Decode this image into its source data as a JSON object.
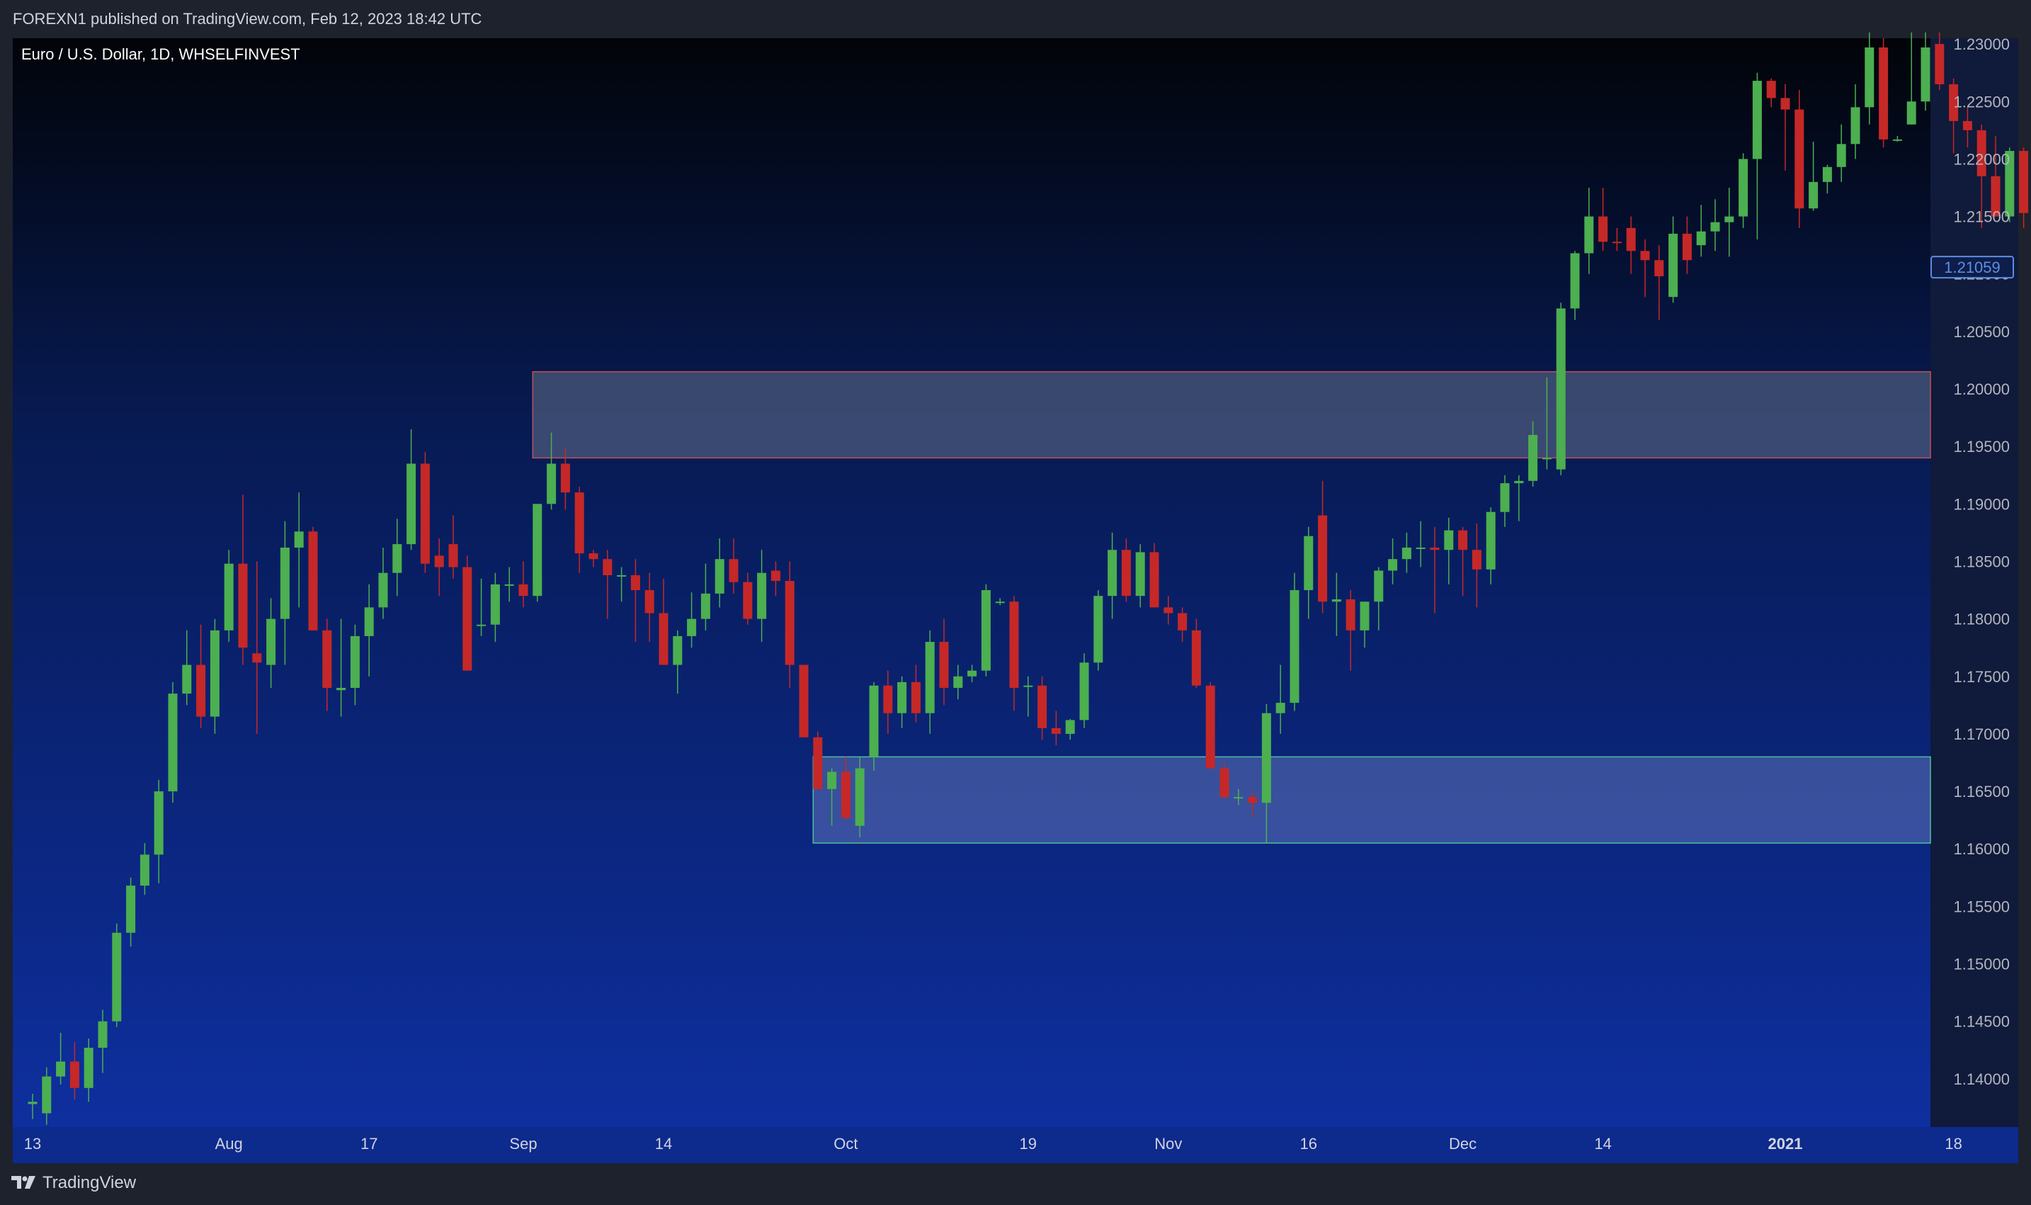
{
  "header": {
    "published": "FOREXN1 published on TradingView.com, Feb 12, 2023 18:42 UTC"
  },
  "footer": {
    "brand": "TradingView"
  },
  "colors": {
    "up": "#4caf50",
    "down": "#c62828",
    "bg_top": "#020409",
    "bg_bottom": "#0e2f9f",
    "price_label": "#5b8fe0"
  },
  "chart_data": {
    "type": "candlestick",
    "title": "Euro / U.S. Dollar, 1D, WHSELFINVEST",
    "ylim": [
      1.1358,
      1.2305
    ],
    "y_ticks": [
      "1.23000",
      "1.22500",
      "1.22000",
      "1.21500",
      "1.21000",
      "1.20500",
      "1.20000",
      "1.19500",
      "1.19000",
      "1.18500",
      "1.18000",
      "1.17500",
      "1.17000",
      "1.16500",
      "1.16000",
      "1.15500",
      "1.15000",
      "1.14500",
      "1.14000"
    ],
    "x_ticks": [
      {
        "label": "13",
        "index": 0
      },
      {
        "label": "Aug",
        "index": 14
      },
      {
        "label": "17",
        "index": 24
      },
      {
        "label": "Sep",
        "index": 35
      },
      {
        "label": "14",
        "index": 45
      },
      {
        "label": "Oct",
        "index": 58
      },
      {
        "label": "19",
        "index": 71
      },
      {
        "label": "Nov",
        "index": 81
      },
      {
        "label": "16",
        "index": 91
      },
      {
        "label": "Dec",
        "index": 102
      },
      {
        "label": "14",
        "index": 112
      },
      {
        "label": "2021",
        "index": 125
      },
      {
        "label": "18",
        "index": 137
      }
    ],
    "last_price": "1.21059",
    "zones": [
      {
        "name": "supply",
        "from_index": 36,
        "top": 1.2015,
        "bottom": 1.194
      },
      {
        "name": "demand",
        "from_index": 56,
        "top": 1.168,
        "bottom": 1.1605
      }
    ],
    "candles": [
      [
        1.1378,
        1.1387,
        1.1365,
        1.138
      ],
      [
        1.137,
        1.141,
        1.136,
        1.1402
      ],
      [
        1.1402,
        1.144,
        1.1395,
        1.1415
      ],
      [
        1.1415,
        1.1432,
        1.1382,
        1.1392
      ],
      [
        1.1392,
        1.1435,
        1.138,
        1.1427
      ],
      [
        1.1427,
        1.146,
        1.1405,
        1.145
      ],
      [
        1.145,
        1.1535,
        1.1445,
        1.1527
      ],
      [
        1.1527,
        1.1575,
        1.1515,
        1.1568
      ],
      [
        1.1568,
        1.1605,
        1.156,
        1.1595
      ],
      [
        1.1595,
        1.166,
        1.157,
        1.165
      ],
      [
        1.165,
        1.1745,
        1.164,
        1.1735
      ],
      [
        1.1735,
        1.179,
        1.1725,
        1.176
      ],
      [
        1.176,
        1.1795,
        1.1705,
        1.1715
      ],
      [
        1.1715,
        1.18,
        1.17,
        1.179
      ],
      [
        1.179,
        1.186,
        1.178,
        1.1848
      ],
      [
        1.1848,
        1.1908,
        1.176,
        1.1775
      ],
      [
        1.177,
        1.185,
        1.17,
        1.1762
      ],
      [
        1.176,
        1.1818,
        1.174,
        1.18
      ],
      [
        1.18,
        1.1885,
        1.176,
        1.1862
      ],
      [
        1.1862,
        1.191,
        1.181,
        1.1876
      ],
      [
        1.1876,
        1.188,
        1.179,
        1.179
      ],
      [
        1.179,
        1.18,
        1.172,
        1.174
      ],
      [
        1.1738,
        1.18,
        1.1715,
        1.174
      ],
      [
        1.174,
        1.1795,
        1.1725,
        1.1785
      ],
      [
        1.1785,
        1.183,
        1.175,
        1.181
      ],
      [
        1.181,
        1.1862,
        1.18,
        1.184
      ],
      [
        1.184,
        1.1887,
        1.182,
        1.1865
      ],
      [
        1.1865,
        1.1965,
        1.186,
        1.1935
      ],
      [
        1.1935,
        1.1945,
        1.184,
        1.1848
      ],
      [
        1.1855,
        1.187,
        1.182,
        1.1845
      ],
      [
        1.1865,
        1.189,
        1.1835,
        1.1845
      ],
      [
        1.1845,
        1.1855,
        1.1755,
        1.1755
      ],
      [
        1.1795,
        1.1835,
        1.1785,
        1.1795
      ],
      [
        1.1795,
        1.184,
        1.178,
        1.183
      ],
      [
        1.183,
        1.1845,
        1.1815,
        1.183
      ],
      [
        1.183,
        1.185,
        1.181,
        1.182
      ],
      [
        1.182,
        1.19,
        1.1815,
        1.19
      ],
      [
        1.19,
        1.1962,
        1.1895,
        1.1935
      ],
      [
        1.1935,
        1.1948,
        1.1895,
        1.191
      ],
      [
        1.191,
        1.1915,
        1.184,
        1.1857
      ],
      [
        1.1857,
        1.186,
        1.1845,
        1.1852
      ],
      [
        1.1852,
        1.186,
        1.18,
        1.1838
      ],
      [
        1.1838,
        1.1845,
        1.1815,
        1.1838
      ],
      [
        1.1838,
        1.1852,
        1.178,
        1.1825
      ],
      [
        1.1825,
        1.184,
        1.178,
        1.1805
      ],
      [
        1.1805,
        1.1835,
        1.176,
        1.176
      ],
      [
        1.176,
        1.179,
        1.1735,
        1.1785
      ],
      [
        1.1785,
        1.1823,
        1.1775,
        1.18
      ],
      [
        1.18,
        1.1848,
        1.179,
        1.1822
      ],
      [
        1.1822,
        1.187,
        1.181,
        1.1852
      ],
      [
        1.1852,
        1.187,
        1.1822,
        1.1832
      ],
      [
        1.1832,
        1.184,
        1.1795,
        1.18
      ],
      [
        1.18,
        1.186,
        1.178,
        1.184
      ],
      [
        1.1842,
        1.185,
        1.182,
        1.1833
      ],
      [
        1.1833,
        1.185,
        1.174,
        1.176
      ],
      [
        1.176,
        1.176,
        1.17,
        1.1697
      ],
      [
        1.1697,
        1.1702,
        1.1655,
        1.1652
      ],
      [
        1.1652,
        1.167,
        1.162,
        1.1667
      ],
      [
        1.1667,
        1.168,
        1.1625,
        1.1627
      ],
      [
        1.162,
        1.168,
        1.161,
        1.167
      ],
      [
        1.168,
        1.1745,
        1.1668,
        1.1742
      ],
      [
        1.1742,
        1.1755,
        1.17,
        1.1718
      ],
      [
        1.1718,
        1.175,
        1.1705,
        1.1745
      ],
      [
        1.1745,
        1.176,
        1.171,
        1.1718
      ],
      [
        1.1718,
        1.179,
        1.17,
        1.178
      ],
      [
        1.178,
        1.18,
        1.1725,
        1.174
      ],
      [
        1.174,
        1.176,
        1.173,
        1.175
      ],
      [
        1.175,
        1.176,
        1.1745,
        1.1755
      ],
      [
        1.1755,
        1.183,
        1.175,
        1.1825
      ],
      [
        1.1815,
        1.1818,
        1.1812,
        1.1815
      ],
      [
        1.1815,
        1.182,
        1.172,
        1.174
      ],
      [
        1.1742,
        1.175,
        1.1715,
        1.1742
      ],
      [
        1.1742,
        1.175,
        1.1695,
        1.1705
      ],
      [
        1.1705,
        1.172,
        1.169,
        1.17
      ],
      [
        1.17,
        1.1713,
        1.1695,
        1.1712
      ],
      [
        1.1712,
        1.177,
        1.1705,
        1.1762
      ],
      [
        1.1762,
        1.1825,
        1.1755,
        1.182
      ],
      [
        1.182,
        1.1875,
        1.18,
        1.186
      ],
      [
        1.186,
        1.187,
        1.1815,
        1.182
      ],
      [
        1.182,
        1.1865,
        1.181,
        1.1858
      ],
      [
        1.1858,
        1.1866,
        1.181,
        1.181
      ],
      [
        1.181,
        1.182,
        1.1795,
        1.1805
      ],
      [
        1.1805,
        1.181,
        1.178,
        1.179
      ],
      [
        1.179,
        1.18,
        1.174,
        1.1742
      ],
      [
        1.1742,
        1.1745,
        1.167,
        1.167
      ],
      [
        1.167,
        1.1675,
        1.1643,
        1.1645
      ],
      [
        1.1645,
        1.1652,
        1.1638,
        1.1645
      ],
      [
        1.1645,
        1.165,
        1.1628,
        1.164
      ],
      [
        1.164,
        1.1726,
        1.1605,
        1.1718
      ],
      [
        1.1718,
        1.176,
        1.17,
        1.1727
      ],
      [
        1.1727,
        1.184,
        1.172,
        1.1825
      ],
      [
        1.1825,
        1.188,
        1.18,
        1.1872
      ],
      [
        1.189,
        1.192,
        1.1805,
        1.1815
      ],
      [
        1.1815,
        1.184,
        1.1785,
        1.1817
      ],
      [
        1.1817,
        1.1825,
        1.1755,
        1.179
      ],
      [
        1.179,
        1.181,
        1.1775,
        1.1815
      ],
      [
        1.1815,
        1.1845,
        1.179,
        1.1842
      ],
      [
        1.1842,
        1.187,
        1.183,
        1.1852
      ],
      [
        1.1852,
        1.1875,
        1.184,
        1.1862
      ],
      [
        1.1862,
        1.1885,
        1.1845,
        1.1862
      ],
      [
        1.1862,
        1.188,
        1.1805,
        1.186
      ],
      [
        1.186,
        1.1888,
        1.183,
        1.1877
      ],
      [
        1.1877,
        1.188,
        1.182,
        1.186
      ],
      [
        1.186,
        1.1883,
        1.181,
        1.1843
      ],
      [
        1.1843,
        1.1897,
        1.183,
        1.1893
      ],
      [
        1.1893,
        1.1925,
        1.188,
        1.1918
      ],
      [
        1.1918,
        1.1925,
        1.1885,
        1.192
      ],
      [
        1.192,
        1.1972,
        1.1915,
        1.196
      ],
      [
        1.194,
        1.201,
        1.193,
        1.194
      ],
      [
        1.193,
        1.2075,
        1.1925,
        1.207
      ],
      [
        1.207,
        1.212,
        1.206,
        1.2118
      ],
      [
        1.2118,
        1.2175,
        1.21,
        1.215
      ],
      [
        1.215,
        1.2175,
        1.212,
        1.2128
      ],
      [
        1.2128,
        1.214,
        1.212,
        1.2127
      ],
      [
        1.214,
        1.215,
        1.21,
        1.212
      ],
      [
        1.212,
        1.213,
        1.208,
        1.2112
      ],
      [
        1.2112,
        1.2125,
        1.206,
        1.2098
      ],
      [
        1.208,
        1.215,
        1.2075,
        1.2135
      ],
      [
        1.2135,
        1.215,
        1.21,
        1.2112
      ],
      [
        1.2125,
        1.216,
        1.2115,
        1.2137
      ],
      [
        1.2137,
        1.2165,
        1.212,
        1.2145
      ],
      [
        1.2145,
        1.2175,
        1.2115,
        1.215
      ],
      [
        1.215,
        1.2205,
        1.214,
        1.22
      ],
      [
        1.22,
        1.2275,
        1.213,
        1.2268
      ],
      [
        1.2268,
        1.227,
        1.2245,
        1.2253
      ],
      [
        1.2253,
        1.2265,
        1.219,
        1.2243
      ],
      [
        1.2243,
        1.226,
        1.214,
        1.2157
      ],
      [
        1.2157,
        1.2215,
        1.2155,
        1.218
      ],
      [
        1.218,
        1.2195,
        1.217,
        1.2193
      ],
      [
        1.2193,
        1.223,
        1.218,
        1.2213
      ],
      [
        1.2213,
        1.2265,
        1.22,
        1.2245
      ],
      [
        1.2245,
        1.231,
        1.223,
        1.2297
      ],
      [
        1.2297,
        1.2305,
        1.221,
        1.2217
      ],
      [
        1.2217,
        1.222,
        1.2215,
        1.2217
      ],
      [
        1.223,
        1.231,
        1.223,
        1.225
      ],
      [
        1.225,
        1.231,
        1.2242,
        1.2297
      ],
      [
        1.23,
        1.231,
        1.226,
        1.2265
      ],
      [
        1.2265,
        1.227,
        1.2205,
        1.2233
      ],
      [
        1.2233,
        1.2245,
        1.221,
        1.2225
      ],
      [
        1.2225,
        1.223,
        1.214,
        1.2185
      ],
      [
        1.2185,
        1.222,
        1.215,
        1.215
      ],
      [
        1.215,
        1.221,
        1.2145,
        1.2207
      ],
      [
        1.2207,
        1.221,
        1.214,
        1.2153
      ],
      [
        1.2153,
        1.218,
        1.214,
        1.2151
      ],
      [
        1.2151,
        1.216,
        1.2055,
        1.2075
      ],
      [
        1.2075,
        1.2115,
        1.207,
        1.2078
      ],
      [
        1.2078,
        1.2138,
        1.2068,
        1.2133
      ],
      [
        1.2133,
        1.216,
        1.2088,
        1.2106
      ]
    ]
  }
}
